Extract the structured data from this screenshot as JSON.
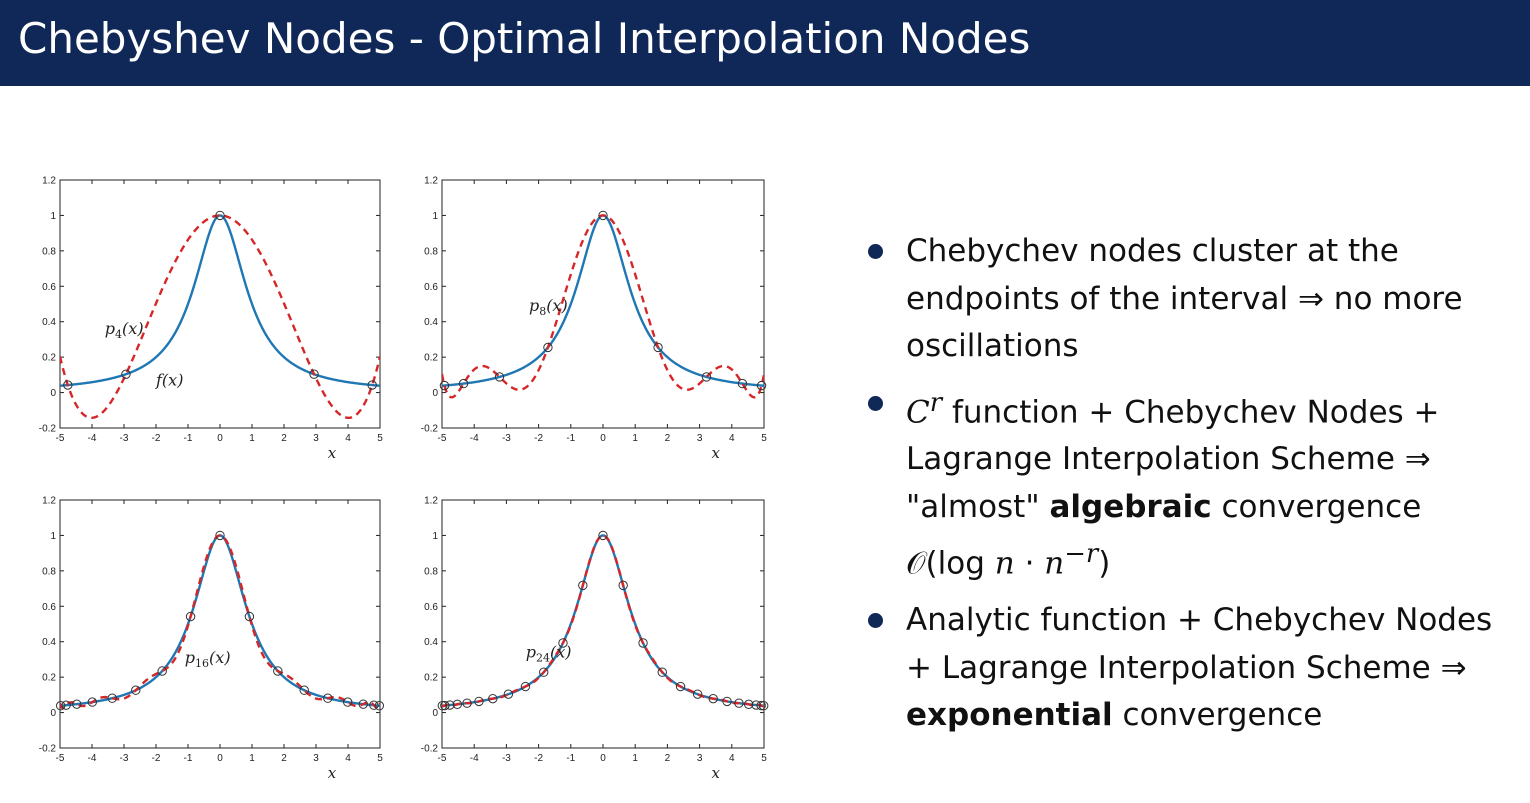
{
  "slide": {
    "title": "Chebyshev Nodes - Optimal Interpolation Nodes"
  },
  "colors": {
    "title_bar": "#102858",
    "function_curve": "#1f77b4",
    "interpolant_curve": "#d62728",
    "node_marker": "#333333"
  },
  "bullets": [
    {
      "text_1": "Chebychev nodes cluster at the endpoints of the interval ⇒ no more oscillations"
    },
    {
      "cr": "C",
      "cr_sup": "r",
      "text_1": " function + Chebychev Nodes + Lagrange Interpolation Scheme ⇒ \"almost\" ",
      "bold": "algebraic",
      "text_2": " convergence",
      "order_open": "𝒪(log ",
      "order_n": "n",
      "order_dot": " · ",
      "order_n2": "n",
      "order_sup": "−r",
      "order_close": ")"
    },
    {
      "text_1": "Analytic function + Chebychev Nodes + Lagrange Interpolation Scheme ⇒ ",
      "bold": "exponential",
      "text_2": " convergence"
    }
  ],
  "chart_data": [
    {
      "type": "line",
      "function": "f(x) = 1/(1+x^2)",
      "curve_label": "f(x)",
      "interpolant_label": "p4(x)",
      "interpolant_sub": "4",
      "degree": 4,
      "xlabel": "x",
      "xlim": [
        -5,
        5
      ],
      "ylim": [
        -0.2,
        1.2
      ],
      "xticks": [
        "-5",
        "-4",
        "-3",
        "-2",
        "-1",
        "0",
        "1",
        "2",
        "3",
        "4",
        "5"
      ],
      "yticks": [
        "-0.2",
        "0",
        "0.2",
        "0.4",
        "0.6",
        "0.8",
        "1",
        "1.2"
      ],
      "nodes_x": [
        -4.7553,
        -2.9389,
        0,
        2.9389,
        4.7553
      ],
      "series": [
        {
          "name": "f(x)",
          "style": "solid"
        },
        {
          "name": "p4(x)",
          "style": "dashed"
        }
      ]
    },
    {
      "type": "line",
      "function": "f(x) = 1/(1+x^2)",
      "interpolant_label": "p8(x)",
      "interpolant_sub": "8",
      "degree": 8,
      "xlabel": "x",
      "xlim": [
        -5,
        5
      ],
      "ylim": [
        -0.2,
        1.2
      ],
      "xticks": [
        "-5",
        "-4",
        "-3",
        "-2",
        "-1",
        "0",
        "1",
        "2",
        "3",
        "4",
        "5"
      ],
      "yticks": [
        "-0.2",
        "0",
        "0.2",
        "0.4",
        "0.6",
        "0.8",
        "1",
        "1.2"
      ],
      "nodes_x": [
        -4.924,
        -4.3301,
        -3.2139,
        -1.7101,
        0,
        1.7101,
        3.2139,
        4.3301,
        4.924
      ],
      "series": [
        {
          "name": "f(x)",
          "style": "solid"
        },
        {
          "name": "p8(x)",
          "style": "dashed"
        }
      ]
    },
    {
      "type": "line",
      "function": "f(x) = 1/(1+x^2)",
      "interpolant_label": "p16(x)",
      "interpolant_sub": "16",
      "degree": 16,
      "xlabel": "x",
      "xlim": [
        -5,
        5
      ],
      "ylim": [
        -0.2,
        1.2
      ],
      "xticks": [
        "-5",
        "-4",
        "-3",
        "-2",
        "-1",
        "0",
        "1",
        "2",
        "3",
        "4",
        "5"
      ],
      "yticks": [
        "-0.2",
        "0",
        "0.2",
        "0.4",
        "0.6",
        "0.8",
        "1",
        "1.2"
      ],
      "series": [
        {
          "name": "f(x)",
          "style": "solid"
        },
        {
          "name": "p16(x)",
          "style": "dashed"
        }
      ]
    },
    {
      "type": "line",
      "function": "f(x) = 1/(1+x^2)",
      "interpolant_label": "p24(x)",
      "interpolant_sub": "24",
      "degree": 24,
      "xlabel": "x",
      "xlim": [
        -5,
        5
      ],
      "ylim": [
        -0.2,
        1.2
      ],
      "xticks": [
        "-5",
        "-4",
        "-3",
        "-2",
        "-1",
        "0",
        "1",
        "2",
        "3",
        "4",
        "5"
      ],
      "yticks": [
        "-0.2",
        "0",
        "0.2",
        "0.4",
        "0.6",
        "0.8",
        "1",
        "1.2"
      ],
      "series": [
        {
          "name": "f(x)",
          "style": "solid"
        },
        {
          "name": "p24(x)",
          "style": "dashed"
        }
      ]
    }
  ]
}
